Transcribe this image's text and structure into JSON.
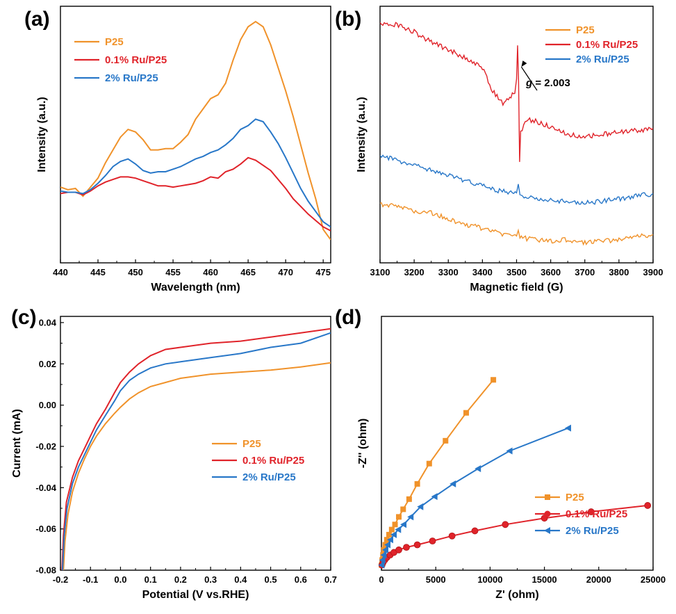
{
  "colors": {
    "P25": "#F0922A",
    "Ru01": "#E0232A",
    "Ru2": "#2877C8"
  },
  "chart_data": [
    {
      "panel": "(a)",
      "type": "line",
      "xlabel": "Wavelength (nm)",
      "ylabel": "Intensity (a.u.)",
      "xlim": [
        440,
        476
      ],
      "ylim": [
        0,
        100
      ],
      "xticks": [
        440,
        445,
        450,
        455,
        460,
        465,
        470,
        475
      ],
      "series": [
        {
          "name": "P25",
          "color_key": "P25",
          "x": [
            440,
            441,
            442,
            443,
            444,
            445,
            446,
            447,
            448,
            449,
            450,
            451,
            452,
            453,
            454,
            455,
            456,
            457,
            458,
            459,
            460,
            461,
            462,
            463,
            464,
            465,
            466,
            467,
            468,
            469,
            470,
            471,
            472,
            473,
            474,
            475,
            476
          ],
          "y": [
            29.5,
            28.5,
            29,
            26,
            29.5,
            33,
            39,
            44,
            49,
            52,
            51,
            48,
            44,
            44,
            44.5,
            44.5,
            47,
            50,
            56,
            60,
            64,
            65.5,
            70,
            79,
            87,
            92,
            94,
            92,
            85,
            76,
            67,
            57,
            46,
            35,
            25,
            13,
            9
          ]
        },
        {
          "name": "0.1% Ru/P25",
          "color_key": "Ru01",
          "x": [
            440,
            441,
            442,
            443,
            444,
            445,
            446,
            447,
            448,
            449,
            450,
            451,
            452,
            453,
            454,
            455,
            456,
            457,
            458,
            459,
            460,
            461,
            462,
            463,
            464,
            465,
            466,
            467,
            468,
            469,
            470,
            471,
            472,
            473,
            474,
            475,
            476
          ],
          "y": [
            27,
            27.5,
            27.5,
            26.5,
            28,
            30,
            31.5,
            32.5,
            33.5,
            33.5,
            33,
            32,
            31,
            30,
            30,
            29.5,
            30,
            30.5,
            31,
            32,
            33.5,
            33,
            35.5,
            36.5,
            38.5,
            41,
            40,
            38,
            36,
            32.5,
            29,
            25,
            22,
            19,
            16.5,
            14,
            12.5
          ]
        },
        {
          "name": "2% Ru/P25",
          "color_key": "Ru2",
          "x": [
            440,
            441,
            442,
            443,
            444,
            445,
            446,
            447,
            448,
            449,
            450,
            451,
            452,
            453,
            454,
            455,
            456,
            457,
            458,
            459,
            460,
            461,
            462,
            463,
            464,
            465,
            466,
            467,
            468,
            469,
            470,
            471,
            472,
            473,
            474,
            475,
            476
          ],
          "y": [
            28,
            27.5,
            27.5,
            27,
            28.5,
            31,
            34,
            37.5,
            39.5,
            40.5,
            38.5,
            36,
            35,
            35.5,
            35.5,
            36.5,
            37.5,
            39,
            40.5,
            41.5,
            43,
            44,
            46,
            48.5,
            52,
            53.5,
            56,
            55,
            51,
            46.5,
            41,
            35,
            29,
            24,
            20,
            16,
            14
          ]
        }
      ],
      "legend": {
        "position": "top-left",
        "entries": [
          "P25",
          "0.1% Ru/P25",
          "2% Ru/P25"
        ]
      }
    },
    {
      "panel": "(b)",
      "type": "line",
      "xlabel": "Magnetic field (G)",
      "ylabel": "Intensity (a.u.)",
      "xlim": [
        3100,
        3900
      ],
      "ylim": [
        0,
        100
      ],
      "xticks": [
        3100,
        3200,
        3300,
        3400,
        3500,
        3600,
        3700,
        3800,
        3900
      ],
      "annotation": {
        "text_italic": "g",
        "text_rest": " = 2.003",
        "x": 3510,
        "y": 78
      },
      "series": [
        {
          "name": "P25",
          "color_key": "P25",
          "x": [
            3100,
            3150,
            3200,
            3250,
            3300,
            3350,
            3400,
            3450,
            3500,
            3505,
            3510,
            3550,
            3600,
            3650,
            3700,
            3750,
            3800,
            3850,
            3900
          ],
          "y": [
            23,
            22,
            20,
            19.5,
            17,
            15,
            13.5,
            11.5,
            11,
            13,
            10,
            9,
            8.5,
            9,
            8,
            8.5,
            9,
            10,
            11
          ]
        },
        {
          "name": "0.1% Ru/P25",
          "color_key": "Ru01",
          "x": [
            3100,
            3150,
            3200,
            3250,
            3300,
            3350,
            3400,
            3430,
            3460,
            3480,
            3495,
            3500,
            3503,
            3506,
            3509,
            3512,
            3530,
            3560,
            3600,
            3650,
            3700,
            3750,
            3800,
            3850,
            3900
          ],
          "y": [
            93,
            93,
            90,
            86,
            83,
            80,
            76,
            67,
            62,
            64,
            67,
            72,
            85,
            70,
            40,
            51,
            56,
            55,
            53,
            50,
            49,
            50,
            51,
            51.5,
            52.5
          ]
        },
        {
          "name": "2% Ru/P25",
          "color_key": "Ru2",
          "x": [
            3100,
            3150,
            3200,
            3250,
            3300,
            3350,
            3400,
            3450,
            3500,
            3505,
            3510,
            3550,
            3600,
            3650,
            3700,
            3750,
            3800,
            3850,
            3900
          ],
          "y": [
            42,
            40,
            38,
            36,
            34,
            32,
            30,
            28,
            27,
            31,
            26,
            25,
            24.5,
            24,
            23.5,
            24,
            25,
            26,
            27
          ]
        }
      ],
      "legend": {
        "position": "top-right",
        "entries": [
          "P25",
          "0.1% Ru/P25",
          "2% Ru/P25"
        ]
      }
    },
    {
      "panel": "(c)",
      "type": "line",
      "xlabel": "Potential (V vs.RHE)",
      "ylabel": "Current (mA)",
      "xlim": [
        -0.2,
        0.7
      ],
      "ylim": [
        -0.08,
        0.043
      ],
      "xticks": [
        -0.2,
        -0.1,
        0.0,
        0.1,
        0.2,
        0.3,
        0.4,
        0.5,
        0.6,
        0.7
      ],
      "xtick_labels": [
        "-0.2",
        "-0.1",
        "0.0",
        "0.1",
        "0.2",
        "0.3",
        "0.4",
        "0.5",
        "0.6",
        "0.7"
      ],
      "yticks": [
        -0.08,
        -0.06,
        -0.04,
        -0.02,
        0.0,
        0.02,
        0.04
      ],
      "ytick_labels": [
        "-0.08",
        "-0.06",
        "-0.04",
        "-0.02",
        "0.00",
        "0.02",
        "0.04"
      ],
      "series": [
        {
          "name": "P25",
          "color_key": "P25",
          "x": [
            -0.19,
            -0.185,
            -0.175,
            -0.16,
            -0.14,
            -0.12,
            -0.1,
            -0.08,
            -0.05,
            -0.02,
            0.0,
            0.03,
            0.06,
            0.1,
            0.15,
            0.2,
            0.3,
            0.4,
            0.5,
            0.6,
            0.7
          ],
          "y": [
            -0.08,
            -0.066,
            -0.053,
            -0.042,
            -0.033,
            -0.026,
            -0.02,
            -0.015,
            -0.009,
            -0.004,
            -0.001,
            0.003,
            0.006,
            0.009,
            0.011,
            0.013,
            0.015,
            0.016,
            0.017,
            0.0185,
            0.0205
          ]
        },
        {
          "name": "0.1% Ru/P25",
          "color_key": "Ru01",
          "x": [
            -0.195,
            -0.19,
            -0.18,
            -0.16,
            -0.14,
            -0.12,
            -0.1,
            -0.08,
            -0.05,
            -0.02,
            0.0,
            0.03,
            0.06,
            0.1,
            0.15,
            0.2,
            0.3,
            0.4,
            0.5,
            0.6,
            0.7
          ],
          "y": [
            -0.08,
            -0.063,
            -0.047,
            -0.035,
            -0.027,
            -0.021,
            -0.015,
            -0.009,
            -0.002,
            0.006,
            0.011,
            0.016,
            0.02,
            0.024,
            0.027,
            0.028,
            0.03,
            0.031,
            0.033,
            0.035,
            0.037
          ]
        },
        {
          "name": "2% Ru/P25",
          "color_key": "Ru2",
          "x": [
            -0.193,
            -0.188,
            -0.178,
            -0.16,
            -0.14,
            -0.12,
            -0.1,
            -0.08,
            -0.05,
            -0.02,
            0.0,
            0.03,
            0.06,
            0.1,
            0.15,
            0.2,
            0.3,
            0.4,
            0.5,
            0.6,
            0.7
          ],
          "y": [
            -0.08,
            -0.064,
            -0.05,
            -0.038,
            -0.03,
            -0.024,
            -0.018,
            -0.012,
            -0.005,
            0.002,
            0.007,
            0.012,
            0.015,
            0.018,
            0.02,
            0.021,
            0.023,
            0.025,
            0.028,
            0.03,
            0.035
          ]
        }
      ],
      "legend": {
        "position": "center-right",
        "entries": [
          "P25",
          "0.1% Ru/P25",
          "2% Ru/P25"
        ]
      }
    },
    {
      "panel": "(d)",
      "type": "scatter",
      "xlabel": "Z' (ohm)",
      "ylabel": "-Z'' (ohm)",
      "xlim": [
        0,
        25000
      ],
      "ylim": [
        0,
        100
      ],
      "xticks": [
        0,
        5000,
        10000,
        15000,
        20000,
        25000
      ],
      "series": [
        {
          "name": "P25",
          "color_key": "P25",
          "marker": "square",
          "x": [
            20,
            70,
            140,
            230,
            350,
            500,
            700,
            950,
            1250,
            1600,
            2000,
            2550,
            3300,
            4400,
            5900,
            7800,
            10300
          ],
          "y": [
            2,
            4,
            6,
            8,
            10,
            12,
            14,
            16,
            18,
            21,
            24,
            28,
            34,
            42,
            51,
            62,
            75
          ]
        },
        {
          "name": "0.1% Ru/P25",
          "color_key": "Ru01",
          "marker": "circle",
          "x": [
            50,
            150,
            300,
            500,
            800,
            1150,
            1600,
            2300,
            3300,
            4700,
            6500,
            8600,
            11400,
            15000,
            19300,
            24500
          ],
          "y": [
            2,
            3,
            4,
            5,
            6,
            7,
            8,
            9,
            10,
            11.5,
            13.5,
            15.5,
            18,
            20.5,
            23,
            25.5
          ]
        },
        {
          "name": "2% Ru/P25",
          "color_key": "Ru2",
          "marker": "triangle-left",
          "x": [
            30,
            110,
            220,
            380,
            580,
            830,
            1150,
            1550,
            2050,
            2700,
            3600,
            4900,
            6600,
            8900,
            11800,
            17200
          ],
          "y": [
            2,
            4,
            6,
            8,
            10,
            12,
            14,
            16,
            18,
            21,
            25,
            29,
            34,
            40,
            47,
            56
          ]
        }
      ],
      "legend": {
        "position": "bottom-right",
        "entries": [
          "P25",
          "0.1% Ru/P25",
          "2% Ru/P25"
        ]
      }
    }
  ]
}
